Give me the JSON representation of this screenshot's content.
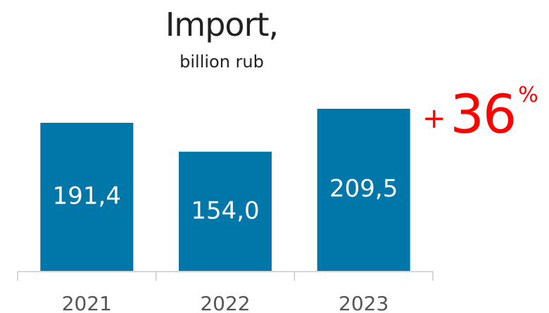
{
  "title": "Import,",
  "subtitle": "billion rub",
  "growth": {
    "plus": "+",
    "value": "36",
    "unit": "%"
  },
  "colors": {
    "bar": "#0077a8",
    "growth": "#ff0000",
    "text": "#222222",
    "axis": "#c8c8c8"
  },
  "chart_data": {
    "type": "bar",
    "categories": [
      "2021",
      "2022",
      "2023"
    ],
    "values": [
      191.4,
      154.0,
      209.5
    ],
    "value_labels": [
      "191,4",
      "154,0",
      "209,5"
    ],
    "title": "Import,",
    "subtitle": "billion rub",
    "xlabel": "",
    "ylabel": "",
    "ylim": [
      0,
      209.5
    ],
    "grid": false,
    "legend": "none"
  }
}
